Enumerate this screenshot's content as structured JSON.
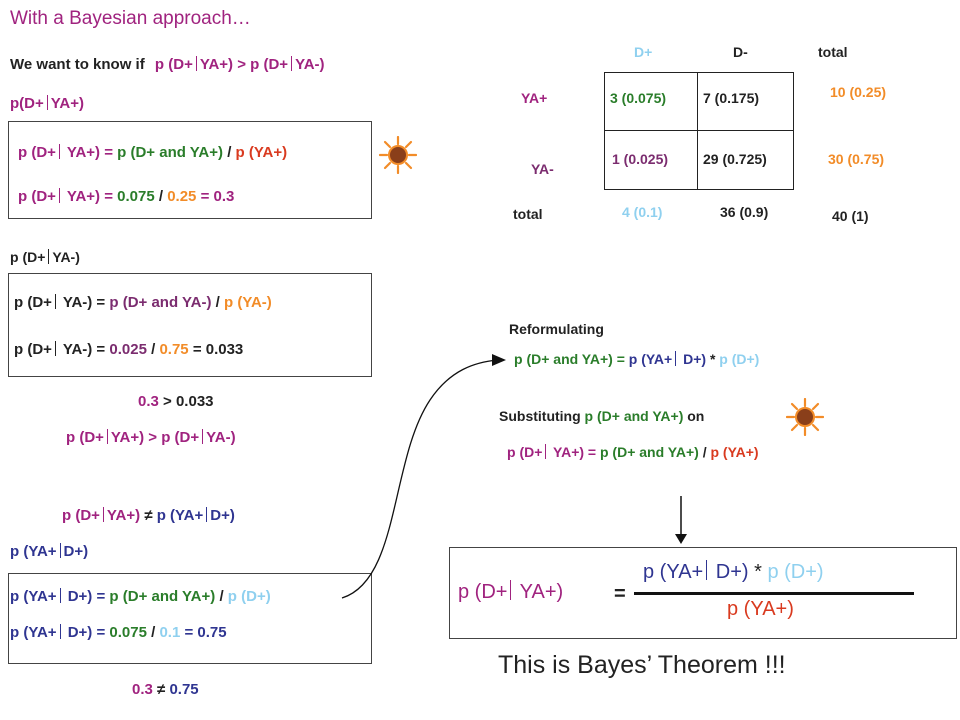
{
  "colors": {
    "magenta": "#a0237f",
    "green": "#2a7d2a",
    "red": "#d93a1f",
    "orange": "#f28c28",
    "blue": "#2f3591",
    "light_blue": "#8fd0ef",
    "black": "#222222",
    "plum": "#7b2c6f"
  },
  "heading": "With a Bayesian approach…",
  "intro": {
    "lead": "We want to know if",
    "expr": "p (D+",
    "mid": "YA+) > p (D+",
    "tail": "YA-)"
  },
  "sec1": {
    "label_a": "p(D+",
    "label_b": "YA+)",
    "line1": {
      "lhs_a": "p (D+",
      "lhs_b": " YA+) =",
      "num": "p (D+ and YA+)",
      "slash": "/",
      "den": "p (YA+)"
    },
    "line2": {
      "lhs_a": "p (D+",
      "lhs_b": " YA+) =",
      "num": "0.075",
      "slash": "/",
      "den": "0.25",
      "result": "= 0.3"
    }
  },
  "sec2": {
    "label_a": "p (D+",
    "label_b": "YA-)",
    "line1": {
      "lhs_a": "p (D+",
      "lhs_b": " YA-) =",
      "num": "p (D+ and YA-)",
      "slash": "/",
      "den": "p (YA-)"
    },
    "line2": {
      "lhs_a": "p (D+",
      "lhs_b": " YA-) =",
      "num": "0.025",
      "slash": "/",
      "den": "0.75",
      "result": "= 0.033"
    }
  },
  "compare1": {
    "a": "0.3",
    "op": ">",
    "b": "0.033"
  },
  "compare2": {
    "a": "p (D+",
    "b": "YA+) > p (D+",
    "c": "YA-)"
  },
  "compare3": {
    "a": "p (D+",
    "b": "YA+)",
    "neq": "≠",
    "c": "p (YA+",
    "d": "D+)"
  },
  "sec3": {
    "label_a": "p (YA+",
    "label_b": "D+)",
    "line1": {
      "lhs_a": "p (YA+",
      "lhs_b": " D+) =",
      "num": "p (D+ and YA+)",
      "slash": "/",
      "den": "p (D+)"
    },
    "line2": {
      "lhs_a": "p (YA+",
      "lhs_b": " D+) =",
      "num": "0.075",
      "slash": "/",
      "den": "0.1",
      "result": "= 0.75"
    }
  },
  "compare4": {
    "a": "0.3",
    "neq": "≠",
    "b": "0.75"
  },
  "table": {
    "col_dplus": "D+",
    "col_dminus": "D-",
    "col_total": "total",
    "row_yaplus": "YA+",
    "row_yaminus": "YA-",
    "row_total": "total",
    "cell_11": "3 (0.075)",
    "cell_12": "7 (0.175)",
    "cell_13": "10 (0.25)",
    "cell_21": "1 (0.025)",
    "cell_22": "29 (0.725)",
    "cell_23": "30 (0.75)",
    "cell_31": "4 (0.1)",
    "cell_32": "36 (0.9)",
    "cell_33": "40  (1)"
  },
  "reform": {
    "title": "Reformulating",
    "eq": {
      "lhs": "p (D+ and YA+) =",
      "mid_a": "p (YA+",
      "mid_b": " D+)",
      "star": "*",
      "last": "p (D+)"
    }
  },
  "subst": {
    "lead": "Substituting",
    "expr": "p (D+ and YA+)",
    "on": "on",
    "eq": {
      "lhs_a": "p (D+",
      "lhs_b": " YA+) =",
      "num": "p (D+ and YA+)",
      "slash": "/",
      "den": "p (YA+)"
    }
  },
  "bayes": {
    "lhs_a": "p (D+",
    "lhs_b": " YA+)",
    "eq": "=",
    "num_a": "p (YA+",
    "num_b": " D+)",
    "star": " *",
    "num_c": " p (D+)",
    "den": "p (YA+)"
  },
  "conclusion": "This is Bayes’ Theorem !!!"
}
